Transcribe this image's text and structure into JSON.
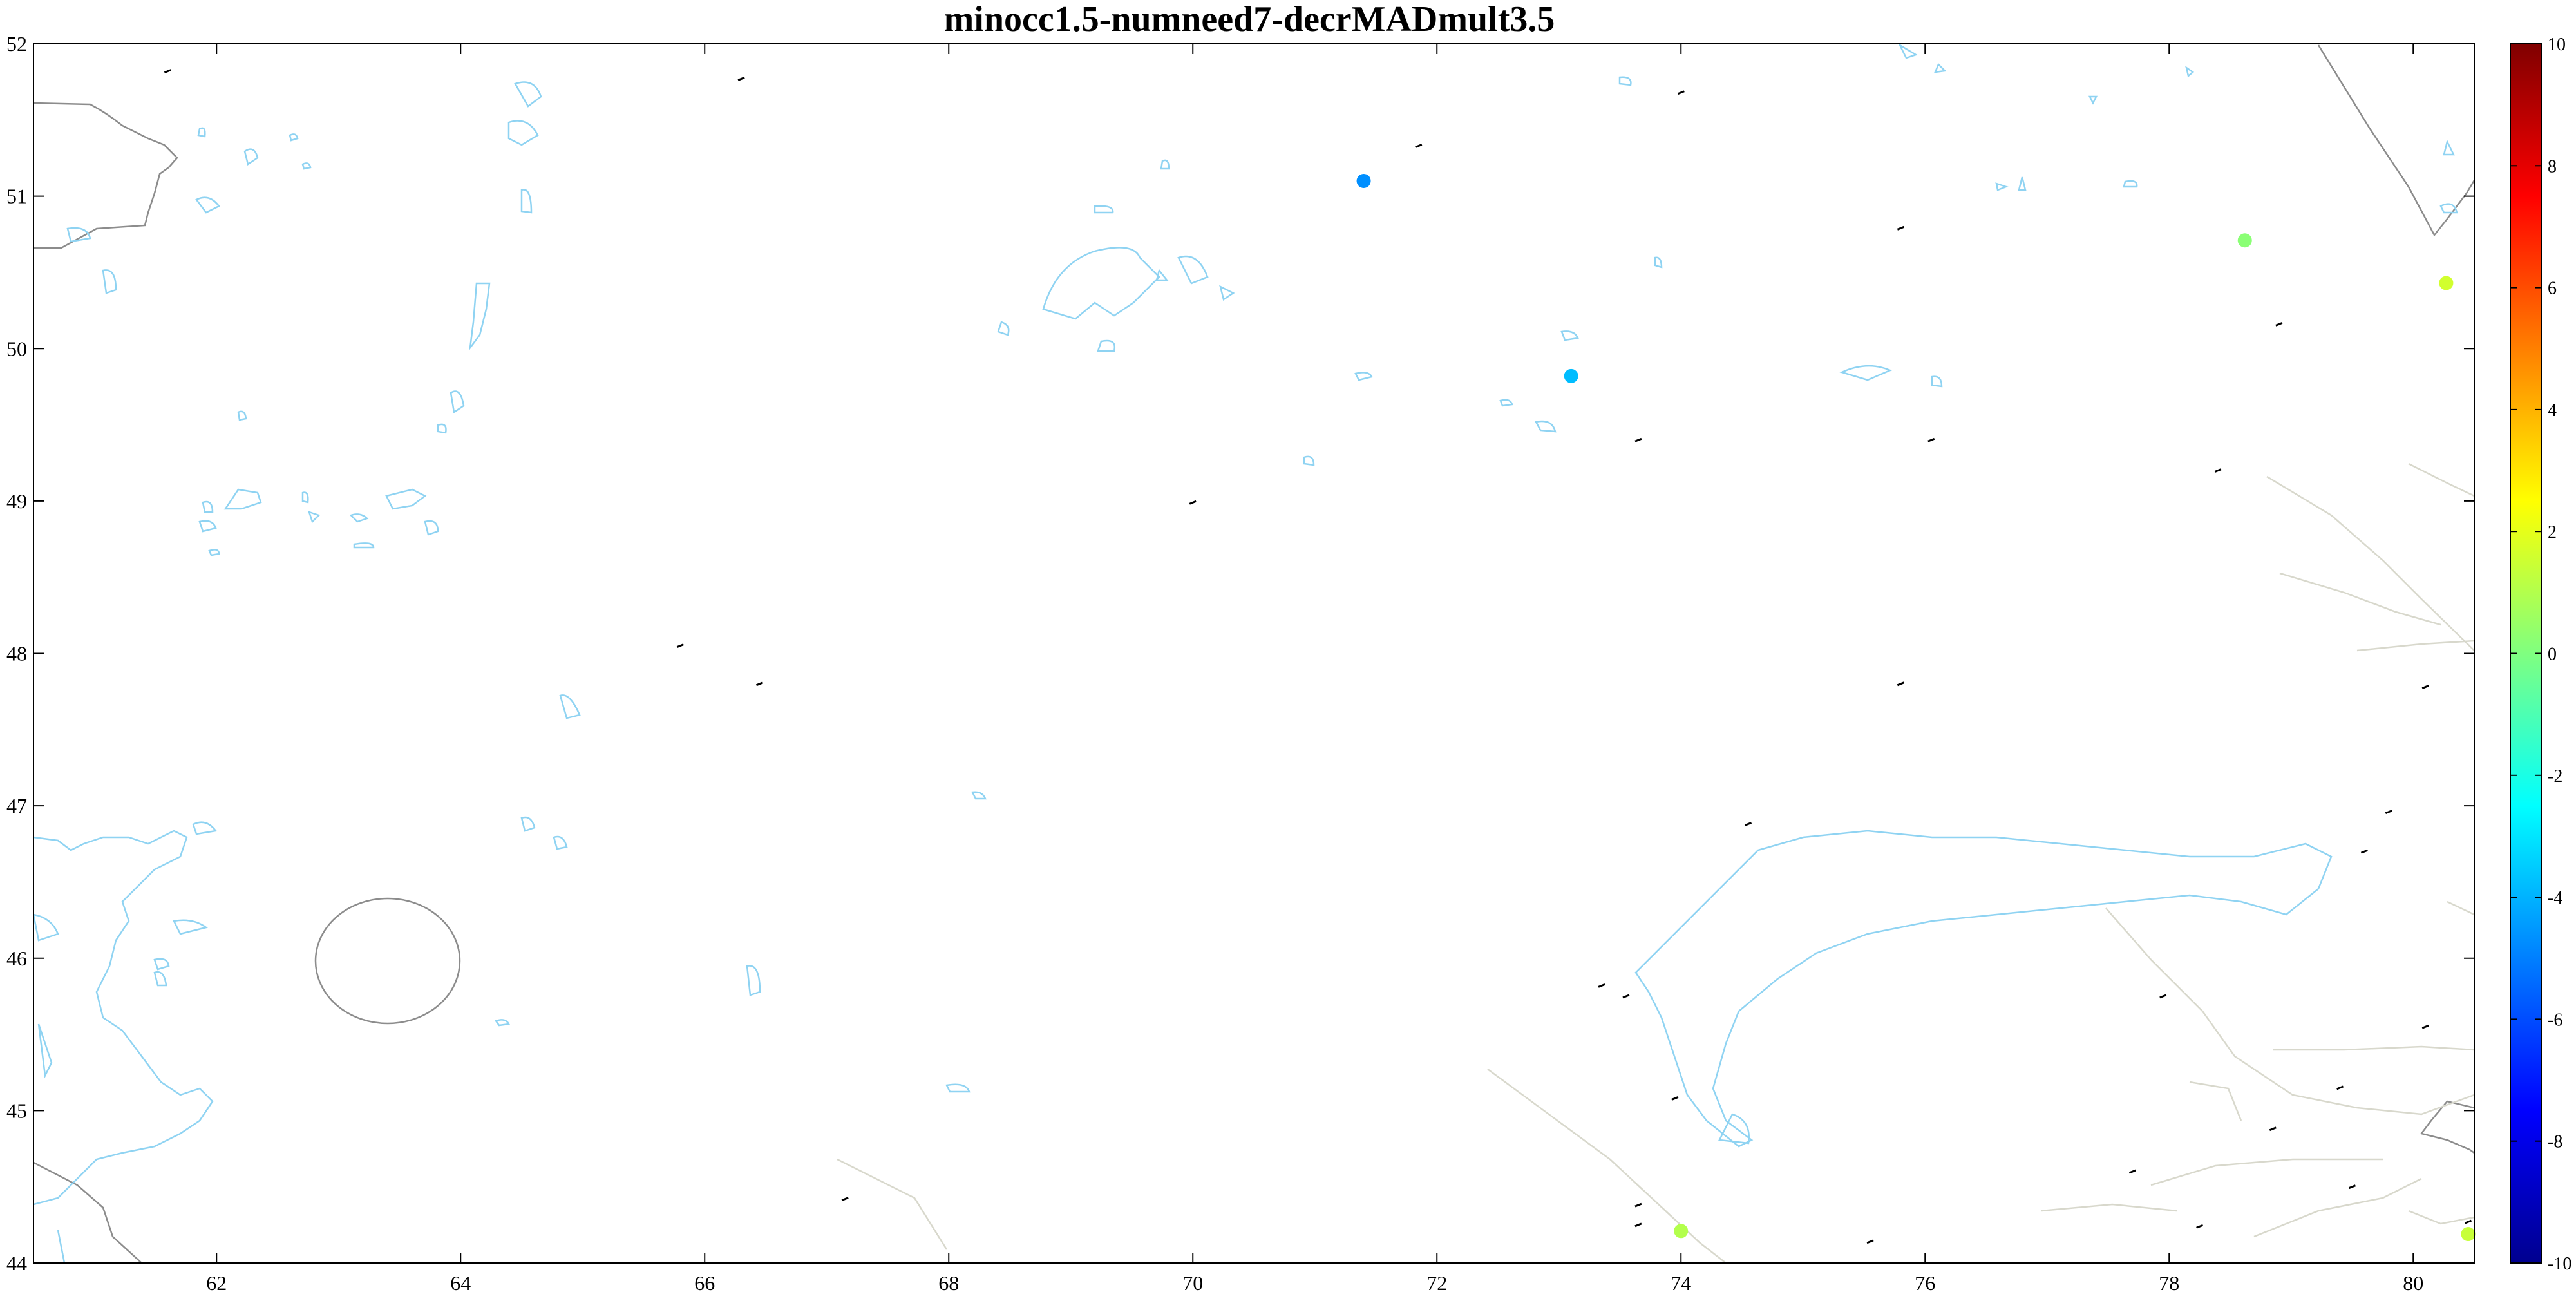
{
  "title": "minocc1.5-numneed7-decrMADmult3.5",
  "chart_data": {
    "type": "scatter",
    "title": "minocc1.5-numneed7-decrMADmult3.5",
    "xlabel": "",
    "ylabel": "",
    "xlim": [
      60.5,
      80.5
    ],
    "ylim": [
      44,
      52
    ],
    "xticks": [
      62,
      64,
      66,
      68,
      70,
      72,
      74,
      76,
      78,
      80
    ],
    "yticks": [
      44,
      45,
      46,
      47,
      48,
      49,
      50,
      51,
      52
    ],
    "grid": false,
    "colorbar": {
      "range": [
        -10,
        10
      ],
      "ticks": [
        10,
        8,
        6,
        4,
        2,
        0,
        -2,
        -4,
        -6,
        -8,
        -10
      ],
      "colormap": "jet"
    },
    "points": [
      {
        "x": 71.4,
        "y": 51.1,
        "value": -4.7
      },
      {
        "x": 73.1,
        "y": 49.82,
        "value": -3.8
      },
      {
        "x": 78.62,
        "y": 50.71,
        "value": 0.2
      },
      {
        "x": 80.27,
        "y": 50.43,
        "value": 1.6
      },
      {
        "x": 74.0,
        "y": 44.21,
        "value": 1.0
      },
      {
        "x": 80.45,
        "y": 44.19,
        "value": 1.4
      }
    ],
    "station_marks": [
      [
        61.6,
        51.82
      ],
      [
        66.3,
        51.77
      ],
      [
        74.0,
        51.68
      ],
      [
        71.85,
        51.33
      ],
      [
        75.8,
        50.79
      ],
      [
        78.9,
        50.16
      ],
      [
        73.65,
        49.4
      ],
      [
        76.05,
        49.4
      ],
      [
        78.4,
        49.2
      ],
      [
        70.0,
        48.99
      ],
      [
        65.8,
        48.05
      ],
      [
        66.45,
        47.8
      ],
      [
        75.8,
        47.8
      ],
      [
        80.1,
        47.78
      ],
      [
        79.8,
        46.96
      ],
      [
        79.6,
        46.7
      ],
      [
        74.55,
        46.88
      ],
      [
        73.35,
        45.82
      ],
      [
        73.55,
        45.75
      ],
      [
        77.95,
        45.75
      ],
      [
        80.1,
        45.55
      ],
      [
        79.4,
        45.15
      ],
      [
        73.95,
        45.08
      ],
      [
        78.85,
        44.88
      ],
      [
        77.7,
        44.6
      ],
      [
        79.5,
        44.5
      ],
      [
        67.15,
        44.42
      ],
      [
        73.65,
        44.38
      ],
      [
        73.65,
        44.25
      ],
      [
        78.25,
        44.24
      ],
      [
        75.55,
        44.14
      ],
      [
        80.45,
        44.27
      ]
    ]
  }
}
